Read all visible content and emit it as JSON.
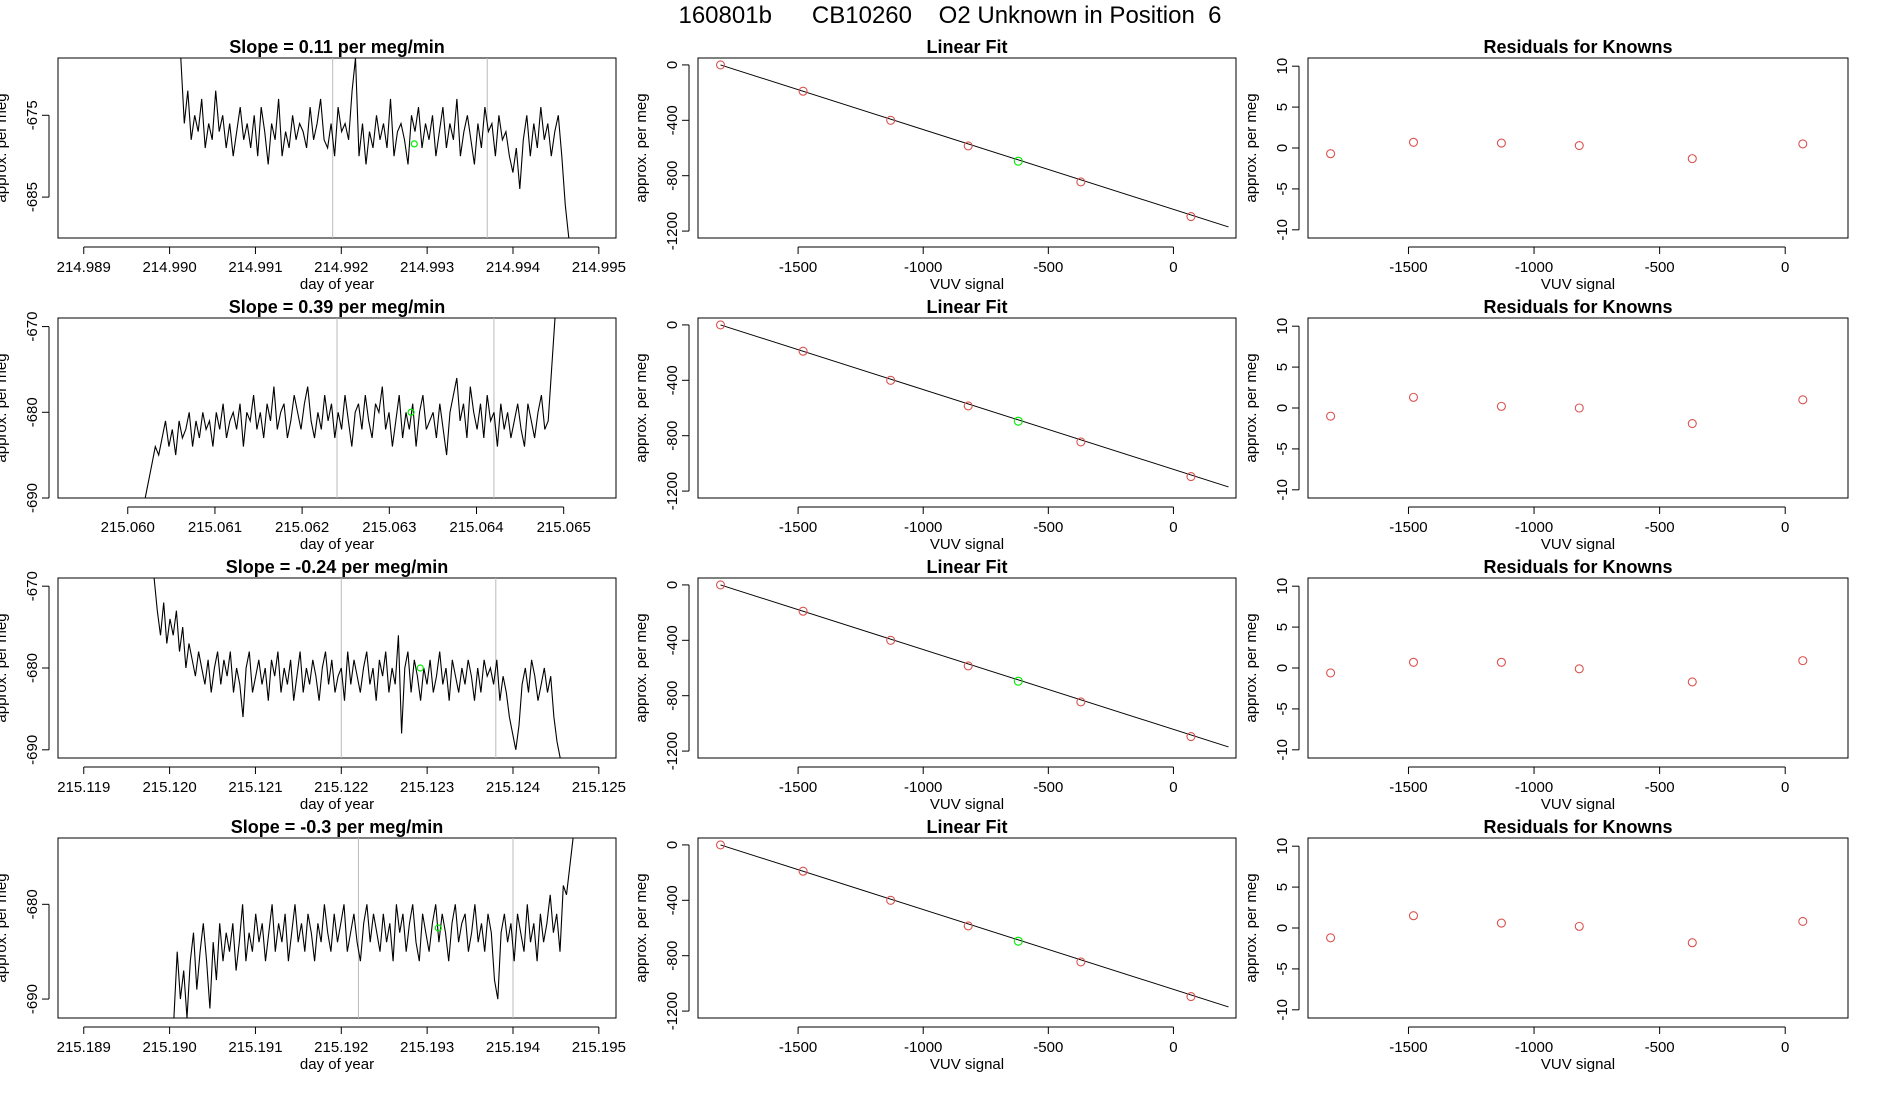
{
  "page": {
    "title": "160801b      CB10260    O2 Unknown in Position  6",
    "background": "#ffffff"
  },
  "colors": {
    "line": "#000000",
    "axis": "#000000",
    "known_point": "#d9534f",
    "unknown_point": "#00ee00",
    "guide_line": "#bbbbbb"
  },
  "chart_data": [
    {
      "type": "line",
      "title": "Slope =  0.11  per meg/min",
      "xlabel": "day of year",
      "ylabel": "approx. per meg",
      "xlim": [
        214.9887,
        214.9952
      ],
      "ylim": [
        -690,
        -668
      ],
      "xticks": [
        "214.989",
        "214.990",
        "214.991",
        "214.992",
        "214.993",
        "214.994",
        "214.995"
      ],
      "yticks": [
        "-675",
        "-685"
      ],
      "vlines": [
        214.9919,
        214.9937
      ],
      "unknown_marker": {
        "x": 214.99285,
        "y": -678.5
      },
      "series": [
        {
          "x_start": 214.99013,
          "x_end": 214.99465,
          "y": [
            -667,
            -676,
            -672,
            -678,
            -675,
            -677,
            -673,
            -679,
            -676,
            -678,
            -672,
            -677,
            -675,
            -679,
            -676,
            -680,
            -677,
            -674,
            -678,
            -676,
            -679,
            -675,
            -680,
            -674,
            -677,
            -681,
            -676,
            -678,
            -673,
            -680,
            -677,
            -679,
            -675,
            -678,
            -676,
            -677,
            -679,
            -674,
            -678,
            -676,
            -673,
            -678,
            -679,
            -676,
            -680,
            -674,
            -677,
            -676,
            -678,
            -672,
            -666,
            -680,
            -676,
            -681,
            -677,
            -679,
            -675,
            -678,
            -676,
            -679,
            -673,
            -680,
            -677,
            -676,
            -678,
            -681,
            -675,
            -677,
            -674,
            -679,
            -676,
            -678,
            -675,
            -680,
            -677,
            -674,
            -679,
            -676,
            -678,
            -673,
            -680,
            -677,
            -675,
            -678,
            -681,
            -676,
            -679,
            -674,
            -677,
            -676,
            -680,
            -675,
            -678,
            -677,
            -680,
            -682,
            -679,
            -684,
            -678,
            -675,
            -680,
            -676,
            -679,
            -674,
            -678,
            -676,
            -680,
            -677,
            -675,
            -680,
            -686,
            -692
          ]
        }
      ]
    },
    {
      "type": "scatter",
      "title": "Linear Fit",
      "xlabel": "VUV signal",
      "ylabel": "approx. per meg",
      "xlim": [
        -1900,
        250
      ],
      "ylim": [
        -1250,
        50
      ],
      "xticks": [
        -1500,
        -1000,
        -500,
        0
      ],
      "yticks": [
        0,
        -400,
        -800,
        -1200
      ],
      "fit_line": {
        "x": [
          -1810,
          220
        ],
        "y": [
          0,
          -1170
        ]
      },
      "known_points": {
        "x": [
          -1810,
          -1480,
          -1130,
          -820,
          -370,
          70
        ],
        "y": [
          0,
          -190,
          -400,
          -585,
          -845,
          -1095
        ]
      },
      "unknown_point": {
        "x": -620,
        "y": -695
      }
    },
    {
      "type": "scatter",
      "title": "Residuals for Knowns",
      "xlabel": "VUV signal",
      "ylabel": "approx. per meg",
      "xlim": [
        -1900,
        250
      ],
      "ylim": [
        -11,
        11
      ],
      "xticks": [
        -1500,
        -1000,
        -500,
        0
      ],
      "yticks": [
        10,
        5,
        0,
        -5,
        -10
      ],
      "known_points": {
        "x": [
          -1810,
          -1480,
          -1130,
          -820,
          -370,
          70
        ],
        "y": [
          -0.7,
          0.7,
          0.6,
          0.3,
          -1.3,
          0.5
        ]
      }
    },
    {
      "type": "line",
      "title": "Slope =  0.39  per meg/min",
      "xlabel": "day of year",
      "ylabel": "approx. per meg",
      "xlim": [
        215.0592,
        215.0656
      ],
      "ylim": [
        -690,
        -669
      ],
      "xticks": [
        "215.060",
        "215.061",
        "215.062",
        "215.063",
        "215.064",
        "215.065"
      ],
      "yticks": [
        "-670",
        "-680",
        "-690"
      ],
      "vlines": [
        215.0624,
        215.0642
      ],
      "unknown_marker": {
        "x": 215.06325,
        "y": -680.0
      },
      "series": [
        {
          "x_start": 215.0602,
          "x_end": 215.0649,
          "y": [
            -691,
            -688,
            -686,
            -684,
            -685,
            -683,
            -681,
            -684,
            -682,
            -685,
            -681,
            -683,
            -682,
            -680,
            -684,
            -681,
            -683,
            -680,
            -682,
            -681,
            -684,
            -680,
            -682,
            -679,
            -683,
            -681,
            -680,
            -682,
            -679,
            -684,
            -680,
            -681,
            -678,
            -682,
            -680,
            -683,
            -679,
            -681,
            -677,
            -682,
            -680,
            -679,
            -683,
            -681,
            -678,
            -680,
            -682,
            -679,
            -677,
            -681,
            -683,
            -680,
            -682,
            -678,
            -681,
            -679,
            -683,
            -680,
            -682,
            -678,
            -681,
            -684,
            -680,
            -679,
            -682,
            -678,
            -681,
            -683,
            -679,
            -680,
            -677,
            -682,
            -680,
            -684,
            -681,
            -678,
            -683,
            -680,
            -682,
            -679,
            -684,
            -680,
            -678,
            -682,
            -681,
            -680,
            -683,
            -679,
            -682,
            -685,
            -680,
            -678,
            -676,
            -681,
            -679,
            -683,
            -677,
            -680,
            -682,
            -679,
            -683,
            -678,
            -681,
            -680,
            -684,
            -679,
            -682,
            -680,
            -683,
            -681,
            -679,
            -682,
            -684,
            -679,
            -681,
            -683,
            -680,
            -678,
            -682,
            -681,
            -675,
            -668
          ]
        }
      ]
    },
    {
      "type": "scatter",
      "title": "Linear Fit",
      "xlabel": "VUV signal",
      "ylabel": "approx. per meg",
      "xlim": [
        -1900,
        250
      ],
      "ylim": [
        -1250,
        50
      ],
      "xticks": [
        -1500,
        -1000,
        -500,
        0
      ],
      "yticks": [
        0,
        -400,
        -800,
        -1200
      ],
      "fit_line": {
        "x": [
          -1810,
          220
        ],
        "y": [
          0,
          -1170
        ]
      },
      "known_points": {
        "x": [
          -1810,
          -1480,
          -1130,
          -820,
          -370,
          70
        ],
        "y": [
          0,
          -190,
          -400,
          -585,
          -845,
          -1095
        ]
      },
      "unknown_point": {
        "x": -620,
        "y": -695
      }
    },
    {
      "type": "scatter",
      "title": "Residuals for Knowns",
      "xlabel": "VUV signal",
      "ylabel": "approx. per meg",
      "xlim": [
        -1900,
        250
      ],
      "ylim": [
        -11,
        11
      ],
      "xticks": [
        -1500,
        -1000,
        -500,
        0
      ],
      "yticks": [
        10,
        5,
        0,
        -5,
        -10
      ],
      "known_points": {
        "x": [
          -1810,
          -1480,
          -1130,
          -820,
          -370,
          70
        ],
        "y": [
          -1.0,
          1.3,
          0.2,
          0.0,
          -1.9,
          1.0
        ]
      }
    },
    {
      "type": "line",
      "title": "Slope =  -0.24  per meg/min",
      "xlabel": "day of year",
      "ylabel": "approx. per meg",
      "xlim": [
        215.1187,
        215.1252
      ],
      "ylim": [
        -691,
        -669
      ],
      "xticks": [
        "215.119",
        "215.120",
        "215.121",
        "215.122",
        "215.123",
        "215.124",
        "215.125"
      ],
      "yticks": [
        "-670",
        "-680",
        "-690"
      ],
      "vlines": [
        215.122,
        215.1238
      ],
      "unknown_marker": {
        "x": 215.12292,
        "y": -680.0
      },
      "series": [
        {
          "x_start": 215.11982,
          "x_end": 215.12455,
          "y": [
            -666,
            -673,
            -676,
            -672,
            -677,
            -674,
            -676,
            -673,
            -678,
            -675,
            -680,
            -677,
            -679,
            -681,
            -678,
            -680,
            -682,
            -679,
            -683,
            -680,
            -678,
            -682,
            -679,
            -681,
            -678,
            -683,
            -680,
            -682,
            -686,
            -680,
            -678,
            -683,
            -681,
            -679,
            -682,
            -680,
            -684,
            -679,
            -681,
            -678,
            -683,
            -680,
            -682,
            -679,
            -684,
            -681,
            -678,
            -683,
            -680,
            -682,
            -679,
            -681,
            -684,
            -680,
            -678,
            -682,
            -679,
            -683,
            -681,
            -680,
            -684,
            -678,
            -682,
            -679,
            -681,
            -683,
            -680,
            -678,
            -682,
            -680,
            -684,
            -679,
            -681,
            -678,
            -683,
            -680,
            -682,
            -676,
            -688,
            -680,
            -678,
            -683,
            -679,
            -681,
            -684,
            -680,
            -682,
            -679,
            -683,
            -681,
            -678,
            -682,
            -680,
            -684,
            -679,
            -681,
            -683,
            -680,
            -682,
            -679,
            -681,
            -684,
            -680,
            -683,
            -679,
            -681,
            -680,
            -682,
            -679,
            -684,
            -681,
            -683,
            -686,
            -688,
            -690,
            -687,
            -682,
            -680,
            -683,
            -679,
            -681,
            -684,
            -682,
            -680,
            -683,
            -681,
            -686,
            -689,
            -692
          ]
        }
      ]
    },
    {
      "type": "scatter",
      "title": "Linear Fit",
      "xlabel": "VUV signal",
      "ylabel": "approx. per meg",
      "xlim": [
        -1900,
        250
      ],
      "ylim": [
        -1250,
        50
      ],
      "xticks": [
        -1500,
        -1000,
        -500,
        0
      ],
      "yticks": [
        0,
        -400,
        -800,
        -1200
      ],
      "fit_line": {
        "x": [
          -1810,
          220
        ],
        "y": [
          0,
          -1170
        ]
      },
      "known_points": {
        "x": [
          -1810,
          -1480,
          -1130,
          -820,
          -370,
          70
        ],
        "y": [
          0,
          -190,
          -400,
          -585,
          -845,
          -1095
        ]
      },
      "unknown_point": {
        "x": -620,
        "y": -695
      }
    },
    {
      "type": "scatter",
      "title": "Residuals for Knowns",
      "xlabel": "VUV signal",
      "ylabel": "approx. per meg",
      "xlim": [
        -1900,
        250
      ],
      "ylim": [
        -11,
        11
      ],
      "xticks": [
        -1500,
        -1000,
        -500,
        0
      ],
      "yticks": [
        10,
        5,
        0,
        -5,
        -10
      ],
      "known_points": {
        "x": [
          -1810,
          -1480,
          -1130,
          -820,
          -370,
          70
        ],
        "y": [
          -0.6,
          0.7,
          0.7,
          -0.1,
          -1.7,
          0.9
        ]
      }
    },
    {
      "type": "line",
      "title": "Slope =  -0.3  per meg/min",
      "xlabel": "day of year",
      "ylabel": "approx. per meg",
      "xlim": [
        215.1887,
        215.1952
      ],
      "ylim": [
        -692,
        -673
      ],
      "xticks": [
        "215.189",
        "215.190",
        "215.191",
        "215.192",
        "215.193",
        "215.194",
        "215.195"
      ],
      "yticks": [
        "-680",
        "-690"
      ],
      "vlines": [
        215.1922,
        215.194
      ],
      "unknown_marker": {
        "x": 215.19313,
        "y": -682.5
      },
      "series": [
        {
          "x_start": 215.19005,
          "x_end": 215.1947,
          "y": [
            -694,
            -685,
            -690,
            -687,
            -692,
            -686,
            -683,
            -689,
            -685,
            -682,
            -686,
            -691,
            -684,
            -688,
            -682,
            -686,
            -683,
            -685,
            -682,
            -687,
            -684,
            -680,
            -686,
            -683,
            -685,
            -681,
            -684,
            -682,
            -686,
            -683,
            -680,
            -685,
            -682,
            -684,
            -681,
            -686,
            -683,
            -680,
            -684,
            -682,
            -685,
            -681,
            -683,
            -686,
            -682,
            -684,
            -680,
            -683,
            -685,
            -681,
            -684,
            -682,
            -680,
            -685,
            -683,
            -681,
            -684,
            -686,
            -682,
            -680,
            -684,
            -681,
            -683,
            -685,
            -681,
            -684,
            -682,
            -686,
            -680,
            -683,
            -681,
            -685,
            -682,
            -680,
            -684,
            -686,
            -681,
            -683,
            -685,
            -682,
            -680,
            -684,
            -681,
            -683,
            -686,
            -682,
            -680,
            -684,
            -682,
            -681,
            -685,
            -683,
            -680,
            -684,
            -682,
            -685,
            -681,
            -683,
            -688,
            -690,
            -683,
            -681,
            -684,
            -682,
            -686,
            -681,
            -683,
            -685,
            -680,
            -684,
            -682,
            -686,
            -681,
            -684,
            -682,
            -679,
            -683,
            -681,
            -685,
            -678,
            -679,
            -676,
            -668
          ]
        }
      ]
    },
    {
      "type": "scatter",
      "title": "Linear Fit",
      "xlabel": "VUV signal",
      "ylabel": "approx. per meg",
      "xlim": [
        -1900,
        250
      ],
      "ylim": [
        -1250,
        50
      ],
      "xticks": [
        -1500,
        -1000,
        -500,
        0
      ],
      "yticks": [
        0,
        -400,
        -800,
        -1200
      ],
      "fit_line": {
        "x": [
          -1810,
          220
        ],
        "y": [
          0,
          -1170
        ]
      },
      "known_points": {
        "x": [
          -1810,
          -1480,
          -1130,
          -820,
          -370,
          70
        ],
        "y": [
          0,
          -190,
          -400,
          -585,
          -845,
          -1095
        ]
      },
      "unknown_point": {
        "x": -620,
        "y": -695
      }
    },
    {
      "type": "scatter",
      "title": "Residuals for Knowns",
      "xlabel": "VUV signal",
      "ylabel": "approx. per meg",
      "xlim": [
        -1900,
        250
      ],
      "ylim": [
        -11,
        11
      ],
      "xticks": [
        -1500,
        -1000,
        -500,
        0
      ],
      "yticks": [
        10,
        5,
        0,
        -5,
        -10
      ],
      "known_points": {
        "x": [
          -1810,
          -1480,
          -1130,
          -820,
          -370,
          70
        ],
        "y": [
          -1.2,
          1.5,
          0.6,
          0.2,
          -1.8,
          0.8
        ]
      }
    }
  ]
}
